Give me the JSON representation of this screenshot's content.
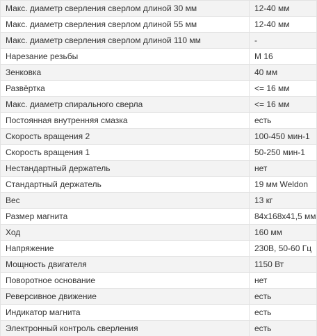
{
  "table": {
    "rows": [
      [
        "Макс. диаметр сверления сверлом длиной 30 мм",
        "12-40 мм"
      ],
      [
        "Макс. диаметр сверления сверлом длиной 55 мм",
        "12-40 мм"
      ],
      [
        "Макс. диаметр сверления сверлом длиной 110 мм",
        "-"
      ],
      [
        "Нарезание резьбы",
        "M 16"
      ],
      [
        "Зенковка",
        "40 мм"
      ],
      [
        "Развёртка",
        "<= 16 мм"
      ],
      [
        "Макс. диаметр спирального сверла",
        "<= 16 мм"
      ],
      [
        "Постоянная внутренняя смазка",
        "есть"
      ],
      [
        "Скорость вращения 2",
        "100-450 мин-1"
      ],
      [
        "Скорость вращения 1",
        "50-250 мин-1"
      ],
      [
        "Нестандартный держатель",
        "нет"
      ],
      [
        "Стандартный держатель",
        "19 мм Weldon"
      ],
      [
        "Вес",
        "13 кг"
      ],
      [
        "Размер магнита",
        "84x168x41,5 мм"
      ],
      [
        "Ход",
        "160 мм"
      ],
      [
        "Напряжение",
        "230В, 50-60 Гц"
      ],
      [
        "Мощность двигателя",
        "1150 Вт"
      ],
      [
        "Поворотное основание",
        "нет"
      ],
      [
        "Реверсивное движение",
        "есть"
      ],
      [
        "Индикатор магнита",
        "есть"
      ],
      [
        "Электронный контроль сверления",
        "есть"
      ]
    ]
  }
}
